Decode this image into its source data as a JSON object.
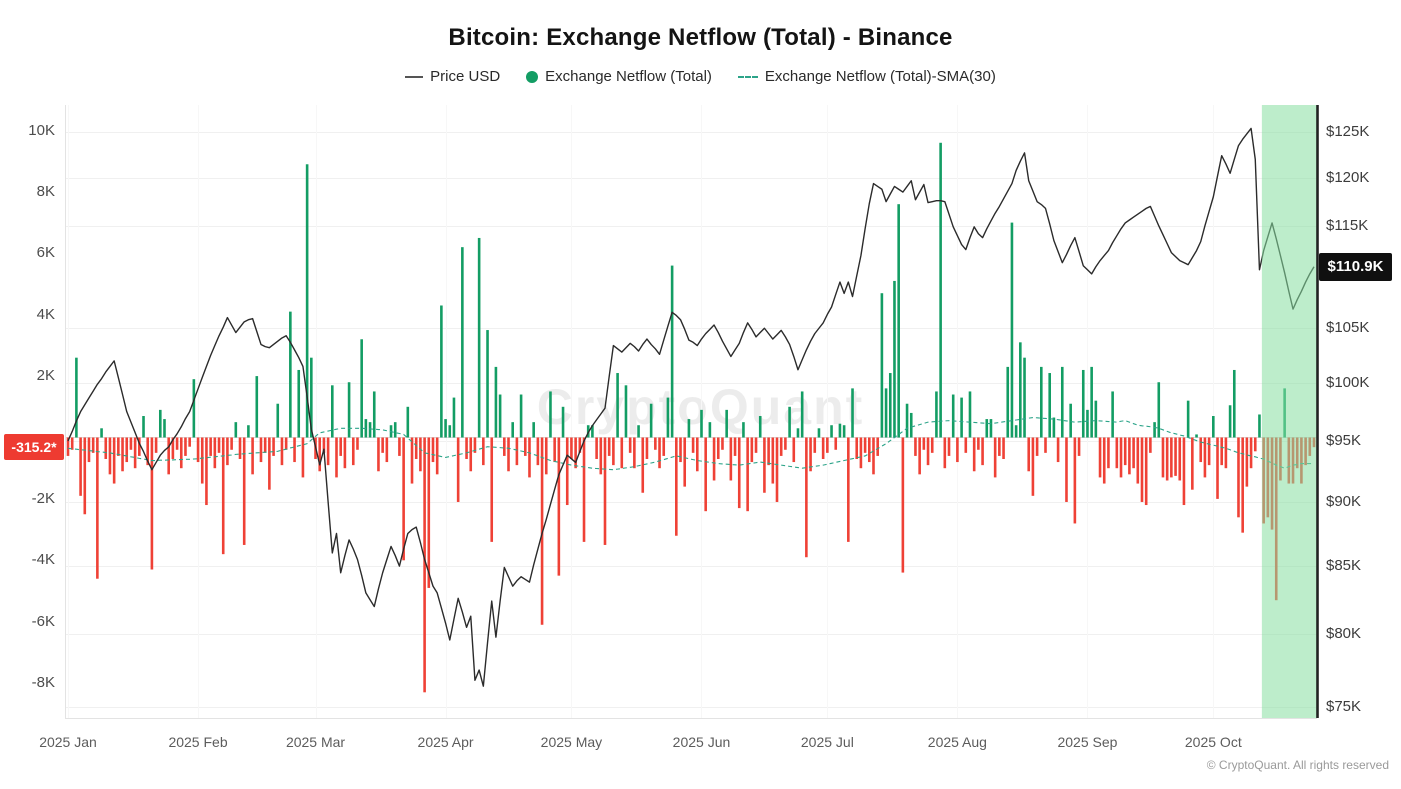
{
  "title": "Bitcoin: Exchange Netflow (Total) - Binance",
  "legend": {
    "price": "Price USD",
    "netflow": "Exchange Netflow (Total)",
    "sma": "Exchange Netflow (Total)-SMA(30)"
  },
  "watermark": "CryptoQuant",
  "footer": "© CryptoQuant. All rights reserved",
  "badges": {
    "netflow_last": "-315.2*",
    "price_last": "$110.9K"
  },
  "colors": {
    "bar_positive": "#139d64",
    "bar_negative": "#ef4136",
    "price_line": "#2b2b2b",
    "sma_line": "#2ca489",
    "highlight": "rgba(134,222,160,0.55)",
    "netflow_badge_bg": "#ee3b31",
    "price_badge_bg": "#101010",
    "axis_line": "#222222",
    "grid": "#f0f0f0"
  },
  "chart_data": {
    "type": "mixed",
    "title": "Bitcoin: Exchange Netflow (Total) - Binance",
    "x_start_date": "2025-01-01",
    "x_step_days": 1,
    "n_points": 298,
    "highlight_start_index": 285,
    "latest_netflow_label": "-315.2*",
    "latest_price_label": "$110.9K",
    "netflow_axis": {
      "side": "left",
      "scale": "linear",
      "unit": "K BTC",
      "range": [
        -9.6,
        10.6
      ],
      "ticks": [
        {
          "label": "10K",
          "value": 10
        },
        {
          "label": "8K",
          "value": 8
        },
        {
          "label": "6K",
          "value": 6
        },
        {
          "label": "4K",
          "value": 4
        },
        {
          "label": "2K",
          "value": 2
        },
        {
          "label": "-2K",
          "value": -2
        },
        {
          "label": "-4K",
          "value": -4
        },
        {
          "label": "-6K",
          "value": -6
        },
        {
          "label": "-8K",
          "value": -8
        }
      ]
    },
    "price_axis": {
      "side": "right",
      "scale": "log",
      "unit": "USD (K)",
      "range": [
        74,
        128
      ],
      "ticks": [
        {
          "label": "$125K",
          "value": 125
        },
        {
          "label": "$120K",
          "value": 120
        },
        {
          "label": "$115K",
          "value": 115
        },
        {
          "label": "$105K",
          "value": 105
        },
        {
          "label": "$100K",
          "value": 100
        },
        {
          "label": "$95K",
          "value": 95
        },
        {
          "label": "$90K",
          "value": 90
        },
        {
          "label": "$85K",
          "value": 85
        },
        {
          "label": "$80K",
          "value": 80
        },
        {
          "label": "$75K",
          "value": 75
        }
      ]
    },
    "months": [
      {
        "label": "2025 Jan",
        "day": 0
      },
      {
        "label": "2025 Feb",
        "day": 31
      },
      {
        "label": "2025 Mar",
        "day": 59
      },
      {
        "label": "2025 Apr",
        "day": 90
      },
      {
        "label": "2025 May",
        "day": 120
      },
      {
        "label": "2025 Jun",
        "day": 151
      },
      {
        "label": "2025 Jul",
        "day": 181
      },
      {
        "label": "2025 Aug",
        "day": 212
      },
      {
        "label": "2025 Sep",
        "day": 243
      },
      {
        "label": "2025 Oct",
        "day": 273
      }
    ],
    "series": [
      {
        "name": "Price USD",
        "type": "line",
        "axis": "price",
        "color": "#2b2b2b",
        "values": [
          95.0,
          95.8,
          96.7,
          97.5,
          98.1,
          98.7,
          99.3,
          99.9,
          100.4,
          101.0,
          101.5,
          102.0,
          100.5,
          99.0,
          97.5,
          96.6,
          95.7,
          94.8,
          94.1,
          93.3,
          92.6,
          93.2,
          93.8,
          94.2,
          94.5,
          95.1,
          95.6,
          96.2,
          96.9,
          97.5,
          98.5,
          99.5,
          100.5,
          101.5,
          102.5,
          103.4,
          104.3,
          105.1,
          106.0,
          105.3,
          104.6,
          105.1,
          105.6,
          105.8,
          105.9,
          104.7,
          103.5,
          103.3,
          103.2,
          103.5,
          103.8,
          104.1,
          104.3,
          103.7,
          103.0,
          102.3,
          101.5,
          98.8,
          96.0,
          94.5,
          93.0,
          94.3,
          90.0,
          86.0,
          87.5,
          84.5,
          85.8,
          87.0,
          86.3,
          85.5,
          84.3,
          83.0,
          82.5,
          82.0,
          83.3,
          84.5,
          85.5,
          86.5,
          85.8,
          85.0,
          86.3,
          87.5,
          87.8,
          88.0,
          86.8,
          85.5,
          84.5,
          83.5,
          83.0,
          81.9,
          80.8,
          79.6,
          81.1,
          82.6,
          81.6,
          80.5,
          81.3,
          76.8,
          77.5,
          76.4,
          79.4,
          82.4,
          79.8,
          82.4,
          84.9,
          84.2,
          83.5,
          83.9,
          84.2,
          84.0,
          83.8,
          85.1,
          86.3,
          87.5,
          88.6,
          89.8,
          91.0,
          92.2,
          93.0,
          93.8,
          93.5,
          93.2,
          94.1,
          95.0,
          95.7,
          96.3,
          96.8,
          97.3,
          97.8,
          100.6,
          103.4,
          103.1,
          102.8,
          103.2,
          103.6,
          103.3,
          102.9,
          103.5,
          104.0,
          103.5,
          103.1,
          102.6,
          103.9,
          105.2,
          106.5,
          106.2,
          105.8,
          104.9,
          103.9,
          103.7,
          103.4,
          104.0,
          104.5,
          104.9,
          105.3,
          104.6,
          103.8,
          103.1,
          102.4,
          103.0,
          103.6,
          104.6,
          105.5,
          104.9,
          104.2,
          104.6,
          105.0,
          104.5,
          104.0,
          104.4,
          104.8,
          104.2,
          103.5,
          102.4,
          101.2,
          102.1,
          103.0,
          103.8,
          104.5,
          105.0,
          105.5,
          106.3,
          107.0,
          108.2,
          109.4,
          108.3,
          109.4,
          108.0,
          110.0,
          112.0,
          114.7,
          117.3,
          119.4,
          119.1,
          118.8,
          117.5,
          118.3,
          119.1,
          118.8,
          118.5,
          119.1,
          119.7,
          117.7,
          118.5,
          119.3,
          117.4,
          117.5,
          117.6,
          117.6,
          117.5,
          116.2,
          114.9,
          114.0,
          113.1,
          112.6,
          113.8,
          114.9,
          114.2,
          113.8,
          114.7,
          115.5,
          116.3,
          117.0,
          117.8,
          118.6,
          119.4,
          120.8,
          121.8,
          122.7,
          119.7,
          118.6,
          117.5,
          117.2,
          116.8,
          115.2,
          113.5,
          112.4,
          111.3,
          112.1,
          113.0,
          113.8,
          112.4,
          111.0,
          110.6,
          110.2,
          110.9,
          111.5,
          112.0,
          112.5,
          113.3,
          114.0,
          114.7,
          115.3,
          115.6,
          115.9,
          116.2,
          116.5,
          116.8,
          117.0,
          116.0,
          115.0,
          114.1,
          113.2,
          112.3,
          111.9,
          111.5,
          111.3,
          111.1,
          111.8,
          112.5,
          113.4,
          115.0,
          116.5,
          118.0,
          120.2,
          122.4,
          121.5,
          120.5,
          122.0,
          123.5,
          124.2,
          124.8,
          125.4,
          122.0,
          110.6,
          112.5,
          113.9,
          115.3,
          113.7,
          112.0,
          110.3,
          108.5,
          106.8,
          107.7,
          108.5,
          109.4,
          110.2,
          110.9
        ]
      },
      {
        "name": "Exchange Netflow (Total)",
        "type": "bar",
        "axis": "netflow",
        "color_positive": "#139d64",
        "color_negative": "#ef4136",
        "values": [
          -0.6,
          -0.4,
          2.6,
          -1.9,
          -2.5,
          -0.8,
          -0.5,
          -4.6,
          0.3,
          -0.7,
          -1.2,
          -1.5,
          -0.6,
          -1.1,
          -0.8,
          -0.4,
          -1.0,
          -0.6,
          0.7,
          -0.9,
          -4.3,
          -0.5,
          0.9,
          0.6,
          -1.2,
          -0.7,
          -0.4,
          -1.0,
          -0.6,
          -0.3,
          1.9,
          -0.8,
          -1.5,
          -2.2,
          -0.6,
          -1.0,
          -0.5,
          -3.8,
          -0.9,
          -0.4,
          0.5,
          -0.7,
          -3.5,
          0.4,
          -1.2,
          2.0,
          -0.8,
          -0.5,
          -1.7,
          -0.6,
          1.1,
          -0.9,
          -0.4,
          4.1,
          -0.8,
          2.2,
          -1.3,
          8.9,
          2.6,
          -0.7,
          -1.1,
          -0.5,
          -0.9,
          1.7,
          -1.3,
          -0.6,
          -1.0,
          1.8,
          -0.9,
          -0.4,
          3.2,
          0.6,
          0.5,
          1.5,
          -1.1,
          -0.5,
          -0.8,
          0.4,
          0.5,
          -0.6,
          -4.0,
          1.0,
          -1.5,
          -0.7,
          -1.1,
          -8.3,
          -4.9,
          -0.8,
          -1.2,
          4.3,
          0.6,
          0.4,
          1.3,
          -2.1,
          6.2,
          -0.7,
          -1.1,
          -0.5,
          6.5,
          -0.9,
          3.5,
          -3.4,
          2.3,
          1.4,
          -0.6,
          -1.1,
          0.5,
          -0.9,
          1.4,
          -0.6,
          -1.3,
          0.5,
          -0.9,
          -6.1,
          -1.2,
          1.5,
          -0.8,
          -4.5,
          1.0,
          -2.2,
          -0.7,
          -1.0,
          -0.5,
          -3.4,
          0.4,
          0.4,
          -0.7,
          -1.2,
          -3.5,
          -0.6,
          -0.9,
          2.1,
          -1.0,
          1.7,
          -0.5,
          -1.0,
          0.4,
          -1.8,
          -0.7,
          1.1,
          -0.4,
          -1.0,
          -0.6,
          1.3,
          5.6,
          -3.2,
          -0.8,
          -1.6,
          0.6,
          -0.5,
          -1.1,
          0.9,
          -2.4,
          0.5,
          -1.4,
          -0.7,
          -0.4,
          0.9,
          -1.4,
          -0.6,
          -2.3,
          0.5,
          -2.4,
          -0.8,
          -0.5,
          0.7,
          -1.8,
          -0.9,
          -1.5,
          -2.1,
          -0.6,
          -0.4,
          1.0,
          -0.8,
          0.3,
          1.5,
          -3.9,
          -1.1,
          -0.5,
          0.3,
          -0.7,
          -0.5,
          0.4,
          -0.4,
          0.45,
          0.4,
          -3.4,
          1.6,
          -0.7,
          -1.0,
          -0.5,
          -0.8,
          -1.2,
          -0.6,
          4.7,
          1.6,
          2.1,
          5.1,
          7.6,
          -4.4,
          1.1,
          0.8,
          -0.6,
          -1.2,
          -0.4,
          -0.9,
          -0.5,
          1.5,
          9.6,
          -1.0,
          -0.6,
          1.4,
          -0.8,
          1.3,
          -0.5,
          1.5,
          -1.1,
          -0.4,
          -0.9,
          0.6,
          0.6,
          -1.3,
          -0.6,
          -0.7,
          2.3,
          7.0,
          0.4,
          3.1,
          2.6,
          -1.1,
          -1.9,
          -0.6,
          2.3,
          -0.5,
          2.1,
          0.65,
          -0.8,
          2.3,
          -2.1,
          1.1,
          -2.8,
          -0.6,
          2.2,
          0.9,
          2.3,
          1.2,
          -1.3,
          -1.5,
          -1.0,
          1.5,
          -1.0,
          -1.3,
          -0.9,
          -1.2,
          -1.0,
          -1.5,
          -2.1,
          -2.2,
          -0.5,
          0.5,
          1.8,
          -1.3,
          -1.4,
          -1.3,
          -1.25,
          -1.4,
          -2.2,
          1.2,
          -1.7,
          0.1,
          -0.8,
          -1.3,
          -0.9,
          0.7,
          -2.0,
          -0.9,
          -1.0,
          1.05,
          2.2,
          -2.6,
          -3.1,
          -1.6,
          -1.0,
          -0.45,
          0.75,
          -2.8,
          -2.6,
          -3.0,
          -5.3,
          -1.4,
          1.6,
          -1.5,
          -1.5,
          -1.0,
          -1.5,
          -0.9,
          -0.6,
          -0.3152
        ]
      },
      {
        "name": "Exchange Netflow (Total)-SMA(30)",
        "type": "line",
        "style": "dashed",
        "axis": "netflow",
        "color": "#2ca489",
        "values": [
          -0.35,
          -0.37,
          -0.38,
          -0.4,
          -0.41,
          -0.43,
          -0.44,
          -0.46,
          -0.47,
          -0.49,
          -0.5,
          -0.53,
          -0.55,
          -0.58,
          -0.6,
          -0.63,
          -0.65,
          -0.68,
          -0.7,
          -0.73,
          -0.75,
          -0.75,
          -0.74,
          -0.74,
          -0.73,
          -0.73,
          -0.72,
          -0.72,
          -0.71,
          -0.71,
          -0.7,
          -0.69,
          -0.67,
          -0.66,
          -0.64,
          -0.63,
          -0.61,
          -0.6,
          -0.58,
          -0.57,
          -0.55,
          -0.54,
          -0.53,
          -0.52,
          -0.51,
          -0.5,
          -0.49,
          -0.48,
          -0.47,
          -0.46,
          -0.45,
          -0.41,
          -0.38,
          -0.34,
          -0.31,
          -0.27,
          -0.24,
          -0.2,
          -0.08,
          0.04,
          0.15,
          0.18,
          0.21,
          0.24,
          0.27,
          0.3,
          0.3,
          0.3,
          0.3,
          0.3,
          0.3,
          0.29,
          0.28,
          0.27,
          0.26,
          0.25,
          0.22,
          0.19,
          0.16,
          0.13,
          0.1,
          -0.02,
          -0.14,
          -0.26,
          -0.38,
          -0.5,
          -0.53,
          -0.56,
          -0.59,
          -0.62,
          -0.65,
          -0.62,
          -0.59,
          -0.56,
          -0.53,
          -0.5,
          -0.46,
          -0.42,
          -0.38,
          -0.34,
          -0.3,
          -0.31,
          -0.32,
          -0.33,
          -0.34,
          -0.35,
          -0.38,
          -0.41,
          -0.44,
          -0.47,
          -0.5,
          -0.55,
          -0.6,
          -0.65,
          -0.7,
          -0.75,
          -0.78,
          -0.81,
          -0.84,
          -0.87,
          -0.9,
          -0.92,
          -0.94,
          -0.96,
          -0.98,
          -1.0,
          -1.01,
          -1.02,
          -1.03,
          -1.04,
          -1.05,
          -1.03,
          -1.01,
          -0.99,
          -0.97,
          -0.95,
          -0.92,
          -0.89,
          -0.86,
          -0.83,
          -0.8,
          -0.76,
          -0.72,
          -0.68,
          -0.64,
          -0.6,
          -0.63,
          -0.66,
          -0.69,
          -0.72,
          -0.75,
          -0.77,
          -0.79,
          -0.81,
          -0.83,
          -0.85,
          -0.86,
          -0.87,
          -0.88,
          -0.89,
          -0.9,
          -0.88,
          -0.86,
          -0.84,
          -0.82,
          -0.8,
          -0.82,
          -0.84,
          -0.86,
          -0.88,
          -0.9,
          -0.92,
          -0.94,
          -0.96,
          -0.98,
          -1.0,
          -0.98,
          -0.96,
          -0.94,
          -0.92,
          -0.9,
          -0.87,
          -0.84,
          -0.81,
          -0.78,
          -0.75,
          -0.72,
          -0.69,
          -0.66,
          -0.63,
          -0.6,
          -0.52,
          -0.44,
          -0.36,
          -0.28,
          -0.2,
          -0.1,
          0.0,
          0.1,
          0.2,
          0.3,
          0.34,
          0.38,
          0.42,
          0.46,
          0.5,
          0.51,
          0.52,
          0.53,
          0.54,
          0.55,
          0.54,
          0.53,
          0.52,
          0.51,
          0.5,
          0.49,
          0.48,
          0.47,
          0.46,
          0.45,
          0.47,
          0.49,
          0.51,
          0.53,
          0.55,
          0.57,
          0.59,
          0.61,
          0.63,
          0.65,
          0.64,
          0.63,
          0.62,
          0.61,
          0.6,
          0.58,
          0.56,
          0.54,
          0.52,
          0.5,
          0.51,
          0.52,
          0.53,
          0.54,
          0.55,
          0.54,
          0.53,
          0.52,
          0.51,
          0.5,
          0.53,
          0.55,
          0.5,
          0.45,
          0.4,
          0.38,
          0.37,
          0.35,
          0.33,
          0.3,
          0.25,
          0.2,
          0.15,
          0.12,
          0.08,
          0.05,
          0.0,
          -0.05,
          -0.1,
          -0.15,
          -0.18,
          -0.22,
          -0.25,
          -0.28,
          -0.32,
          -0.35,
          -0.4,
          -0.45,
          -0.5,
          -0.53,
          -0.57,
          -0.6,
          -0.63,
          -0.67,
          -0.7,
          -0.77,
          -0.83,
          -0.9,
          -0.95,
          -1.0,
          -0.95,
          -0.9,
          -0.88,
          -0.85,
          -0.85,
          -0.85,
          -0.85
        ]
      }
    ]
  }
}
